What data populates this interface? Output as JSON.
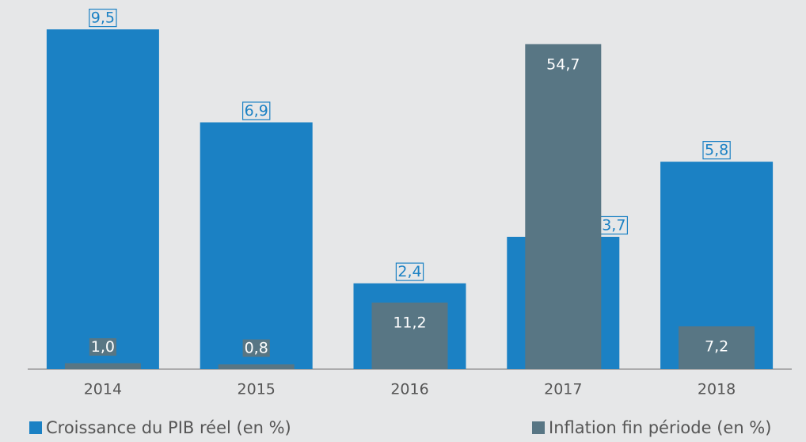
{
  "chart_data": {
    "type": "bar",
    "categories": [
      "2014",
      "2015",
      "2016",
      "2017",
      "2018"
    ],
    "series": [
      {
        "name": "Croissance du PIB réel (en %)",
        "color": "#1b81c4",
        "values": [
          9.5,
          6.9,
          2.4,
          3.7,
          5.8
        ],
        "value_labels": [
          "9,5",
          "6,9",
          "2,4",
          "3,7",
          "5,8"
        ]
      },
      {
        "name": "Inflation fin période (en %)",
        "color": "#587684",
        "axis": "y2",
        "values": [
          1.0,
          0.8,
          11.2,
          54.7,
          7.2
        ],
        "value_labels": [
          "1,0",
          "0,8",
          "11,2",
          "54,7",
          "7,2"
        ]
      }
    ],
    "ylim": [
      0,
      10.1
    ],
    "y2lim": [
      0,
      60.8
    ]
  }
}
